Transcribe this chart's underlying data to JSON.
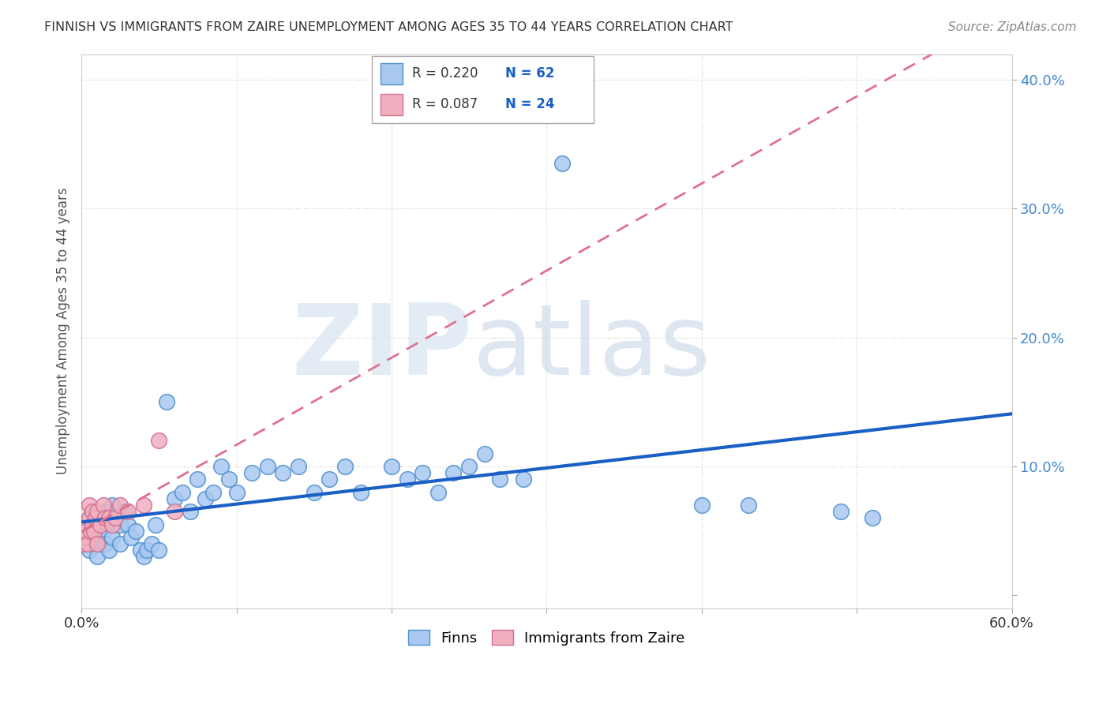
{
  "title": "FINNISH VS IMMIGRANTS FROM ZAIRE UNEMPLOYMENT AMONG AGES 35 TO 44 YEARS CORRELATION CHART",
  "source": "Source: ZipAtlas.com",
  "ylabel": "Unemployment Among Ages 35 to 44 years",
  "xlim": [
    0.0,
    0.6
  ],
  "ylim": [
    -0.01,
    0.42
  ],
  "finns_color": "#a8c8f0",
  "finns_edge_color": "#5090d0",
  "zaire_color": "#f0b0c0",
  "zaire_edge_color": "#d07090",
  "finns_line_color": "#1a5fc4",
  "zaire_line_color": "#e07090",
  "background_color": "#ffffff",
  "grid_color": "#d0d0d0",
  "finns_x": [
    0.003,
    0.005,
    0.005,
    0.007,
    0.008,
    0.008,
    0.009,
    0.01,
    0.01,
    0.012,
    0.012,
    0.014,
    0.015,
    0.015,
    0.018,
    0.02,
    0.02,
    0.022,
    0.025,
    0.025,
    0.028,
    0.03,
    0.032,
    0.035,
    0.038,
    0.04,
    0.042,
    0.045,
    0.048,
    0.05,
    0.055,
    0.06,
    0.065,
    0.07,
    0.075,
    0.08,
    0.085,
    0.09,
    0.095,
    0.1,
    0.11,
    0.12,
    0.13,
    0.14,
    0.15,
    0.16,
    0.17,
    0.18,
    0.2,
    0.21,
    0.22,
    0.23,
    0.24,
    0.25,
    0.26,
    0.27,
    0.285,
    0.31,
    0.4,
    0.43,
    0.49,
    0.51
  ],
  "finns_y": [
    0.04,
    0.035,
    0.06,
    0.05,
    0.04,
    0.055,
    0.045,
    0.03,
    0.06,
    0.055,
    0.04,
    0.05,
    0.04,
    0.065,
    0.035,
    0.045,
    0.07,
    0.06,
    0.04,
    0.055,
    0.065,
    0.055,
    0.045,
    0.05,
    0.035,
    0.03,
    0.035,
    0.04,
    0.055,
    0.035,
    0.15,
    0.075,
    0.08,
    0.065,
    0.09,
    0.075,
    0.08,
    0.1,
    0.09,
    0.08,
    0.095,
    0.1,
    0.095,
    0.1,
    0.08,
    0.09,
    0.1,
    0.08,
    0.1,
    0.09,
    0.095,
    0.08,
    0.095,
    0.1,
    0.11,
    0.09,
    0.09,
    0.335,
    0.07,
    0.07,
    0.065,
    0.06
  ],
  "zaire_x": [
    0.001,
    0.002,
    0.003,
    0.004,
    0.005,
    0.005,
    0.006,
    0.007,
    0.007,
    0.008,
    0.009,
    0.01,
    0.01,
    0.012,
    0.014,
    0.015,
    0.018,
    0.02,
    0.022,
    0.025,
    0.03,
    0.04,
    0.05,
    0.06
  ],
  "zaire_y": [
    0.04,
    0.045,
    0.05,
    0.04,
    0.06,
    0.07,
    0.05,
    0.055,
    0.065,
    0.05,
    0.06,
    0.04,
    0.065,
    0.055,
    0.07,
    0.06,
    0.06,
    0.055,
    0.06,
    0.07,
    0.065,
    0.07,
    0.12,
    0.065
  ]
}
